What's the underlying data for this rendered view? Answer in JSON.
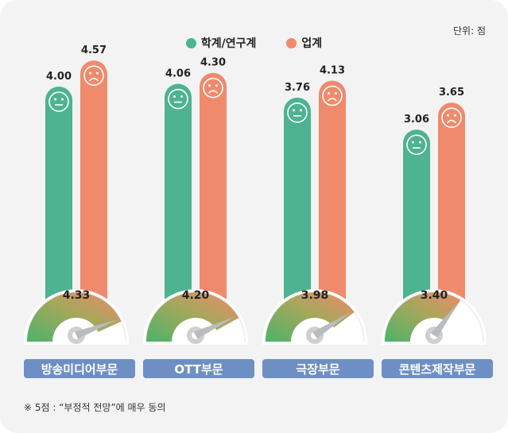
{
  "unit_label": "단위: 점",
  "footnote": "※ 5점 : “부정적 전망”에 매우 동의",
  "colors": {
    "academia": "#4db390",
    "industry": "#f08a6c",
    "category_bg": "#6e8fc3",
    "background": "#f3f3f3"
  },
  "chart_data": {
    "type": "bar",
    "categories": [
      "방송미디어부문",
      "OTT부문",
      "극장부문",
      "콘텐츠제작부문"
    ],
    "series": [
      {
        "name": "학계/연구계",
        "values": [
          4.0,
          4.06,
          3.76,
          3.06
        ],
        "face": "neutral"
      },
      {
        "name": "업계",
        "values": [
          4.57,
          4.3,
          4.13,
          3.65
        ],
        "face": "sad"
      }
    ],
    "gauge_values": [
      4.33,
      4.2,
      3.98,
      3.4
    ],
    "value_labels": {
      "academia": [
        "4.00",
        "4.06",
        "3.76",
        "3.06"
      ],
      "industry": [
        "4.57",
        "4.30",
        "4.13",
        "3.65"
      ],
      "gauge": [
        "4.33",
        "4.20",
        "3.98",
        "3.40"
      ]
    },
    "scale": [
      0,
      5
    ],
    "legend": "top-center"
  }
}
